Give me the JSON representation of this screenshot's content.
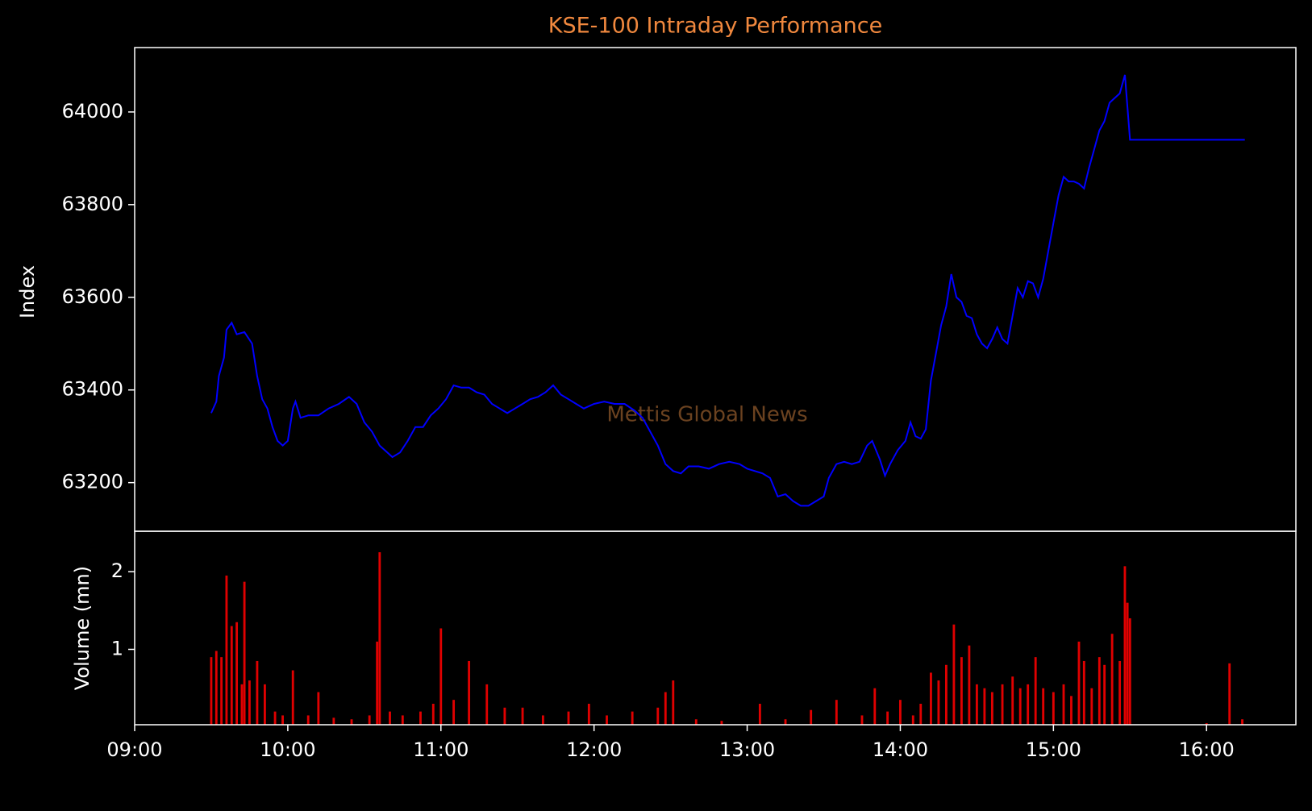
{
  "chart_data": [
    {
      "type": "line",
      "title": "KSE-100 Intraday Performance",
      "ylabel": "Index",
      "watermark": "Mettis Global News",
      "color": "#0000ff",
      "xlim": [
        "09:00",
        "16:35"
      ],
      "ylim": [
        63095,
        64139
      ],
      "yticks": [
        63200,
        63400,
        63600,
        63800,
        64000
      ],
      "x": [
        "09:30",
        "09:32",
        "09:33",
        "09:35",
        "09:36",
        "09:38",
        "09:40",
        "09:43",
        "09:46",
        "09:48",
        "09:50",
        "09:52",
        "09:54",
        "09:56",
        "09:58",
        "10:00",
        "10:02",
        "10:03",
        "10:05",
        "10:08",
        "10:12",
        "10:16",
        "10:20",
        "10:24",
        "10:27",
        "10:30",
        "10:33",
        "10:36",
        "10:39",
        "10:41",
        "10:44",
        "10:47",
        "10:50",
        "10:53",
        "10:56",
        "10:59",
        "11:02",
        "11:05",
        "11:08",
        "11:11",
        "11:14",
        "11:17",
        "11:20",
        "11:23",
        "11:26",
        "11:29",
        "11:32",
        "11:35",
        "11:38",
        "11:41",
        "11:44",
        "11:47",
        "11:50",
        "11:53",
        "11:56",
        "12:00",
        "12:04",
        "12:08",
        "12:12",
        "12:16",
        "12:19",
        "12:22",
        "12:25",
        "12:28",
        "12:31",
        "12:34",
        "12:37",
        "12:41",
        "12:45",
        "12:49",
        "12:53",
        "12:57",
        "13:00",
        "13:03",
        "13:06",
        "13:09",
        "13:12",
        "13:15",
        "13:18",
        "13:21",
        "13:24",
        "13:27",
        "13:30",
        "13:32",
        "13:35",
        "13:38",
        "13:41",
        "13:44",
        "13:47",
        "13:49",
        "13:52",
        "13:54",
        "13:56",
        "13:59",
        "14:02",
        "14:04",
        "14:06",
        "14:08",
        "14:10",
        "14:12",
        "14:14",
        "14:16",
        "14:18",
        "14:20",
        "14:22",
        "14:24",
        "14:26",
        "14:28",
        "14:30",
        "14:32",
        "14:34",
        "14:36",
        "14:38",
        "14:40",
        "14:42",
        "14:44",
        "14:46",
        "14:48",
        "14:50",
        "14:52",
        "14:54",
        "14:56",
        "14:58",
        "15:00",
        "15:02",
        "15:04",
        "15:06",
        "15:08",
        "15:10",
        "15:12",
        "15:14",
        "15:16",
        "15:18",
        "15:20",
        "15:22",
        "15:24",
        "15:26",
        "15:28",
        "15:30",
        "16:15"
      ],
      "values": [
        63350,
        63375,
        63430,
        63470,
        63530,
        63545,
        63520,
        63525,
        63500,
        63430,
        63380,
        63360,
        63320,
        63290,
        63280,
        63290,
        63360,
        63375,
        63340,
        63345,
        63345,
        63360,
        63370,
        63385,
        63370,
        63330,
        63310,
        63280,
        63265,
        63255,
        63265,
        63290,
        63320,
        63320,
        63345,
        63360,
        63380,
        63410,
        63405,
        63405,
        63395,
        63390,
        63370,
        63360,
        63350,
        63360,
        63370,
        63380,
        63385,
        63395,
        63410,
        63390,
        63380,
        63370,
        63360,
        63370,
        63375,
        63370,
        63370,
        63355,
        63340,
        63310,
        63280,
        63240,
        63225,
        63220,
        63235,
        63235,
        63230,
        63240,
        63245,
        63240,
        63230,
        63225,
        63220,
        63210,
        63170,
        63175,
        63160,
        63150,
        63150,
        63160,
        63170,
        63210,
        63240,
        63245,
        63240,
        63245,
        63280,
        63290,
        63250,
        63215,
        63240,
        63270,
        63290,
        63330,
        63300,
        63295,
        63315,
        63420,
        63480,
        63540,
        63580,
        63650,
        63600,
        63590,
        63560,
        63555,
        63520,
        63500,
        63490,
        63510,
        63535,
        63510,
        63500,
        63560,
        63620,
        63600,
        63635,
        63630,
        63600,
        63640,
        63700,
        63760,
        63820,
        63860,
        63850,
        63850,
        63845,
        63835,
        63880,
        63920,
        63960,
        63980,
        64020,
        64030,
        64040,
        64080,
        63940,
        63940
      ]
    },
    {
      "type": "bar",
      "ylabel": "Volume (mn)",
      "color": "#e00000",
      "xlim": [
        "09:00",
        "16:35"
      ],
      "ylim": [
        0.03,
        2.52
      ],
      "yticks": [
        1,
        2
      ],
      "xticks": [
        "09:00",
        "10:00",
        "11:00",
        "12:00",
        "13:00",
        "14:00",
        "15:00",
        "16:00"
      ],
      "x": [
        "09:30",
        "09:32",
        "09:34",
        "09:36",
        "09:38",
        "09:40",
        "09:42",
        "09:43",
        "09:45",
        "09:48",
        "09:51",
        "09:55",
        "09:58",
        "10:02",
        "10:08",
        "10:12",
        "10:18",
        "10:25",
        "10:32",
        "10:35",
        "10:36",
        "10:40",
        "10:45",
        "10:52",
        "10:57",
        "11:00",
        "11:05",
        "11:11",
        "11:18",
        "11:25",
        "11:32",
        "11:40",
        "11:50",
        "11:58",
        "12:05",
        "12:15",
        "12:25",
        "12:28",
        "12:31",
        "12:40",
        "12:50",
        "13:05",
        "13:15",
        "13:25",
        "13:35",
        "13:45",
        "13:50",
        "13:55",
        "14:00",
        "14:05",
        "14:08",
        "14:12",
        "14:15",
        "14:18",
        "14:21",
        "14:24",
        "14:27",
        "14:30",
        "14:33",
        "14:36",
        "14:40",
        "14:44",
        "14:47",
        "14:50",
        "14:53",
        "14:56",
        "15:00",
        "15:04",
        "15:07",
        "15:10",
        "15:12",
        "15:15",
        "15:18",
        "15:20",
        "15:23",
        "15:26",
        "15:28",
        "15:29",
        "15:30",
        "16:00",
        "16:09",
        "16:14"
      ],
      "values": [
        0.9,
        0.98,
        0.9,
        1.95,
        1.3,
        1.35,
        0.55,
        1.87,
        0.6,
        0.85,
        0.55,
        0.2,
        0.15,
        0.73,
        0.15,
        0.45,
        0.12,
        0.1,
        0.15,
        1.1,
        2.25,
        0.2,
        0.15,
        0.2,
        0.3,
        1.27,
        0.35,
        0.85,
        0.55,
        0.25,
        0.25,
        0.15,
        0.2,
        0.3,
        0.15,
        0.2,
        0.25,
        0.45,
        0.6,
        0.1,
        0.08,
        0.3,
        0.1,
        0.22,
        0.35,
        0.15,
        0.5,
        0.2,
        0.35,
        0.15,
        0.3,
        0.7,
        0.6,
        0.8,
        1.32,
        0.9,
        1.05,
        0.55,
        0.5,
        0.45,
        0.55,
        0.65,
        0.5,
        0.55,
        0.9,
        0.5,
        0.45,
        0.55,
        0.4,
        1.1,
        0.85,
        0.5,
        0.9,
        0.8,
        1.2,
        0.85,
        2.07,
        1.6,
        1.4,
        0.05,
        0.82,
        0.1
      ]
    }
  ]
}
